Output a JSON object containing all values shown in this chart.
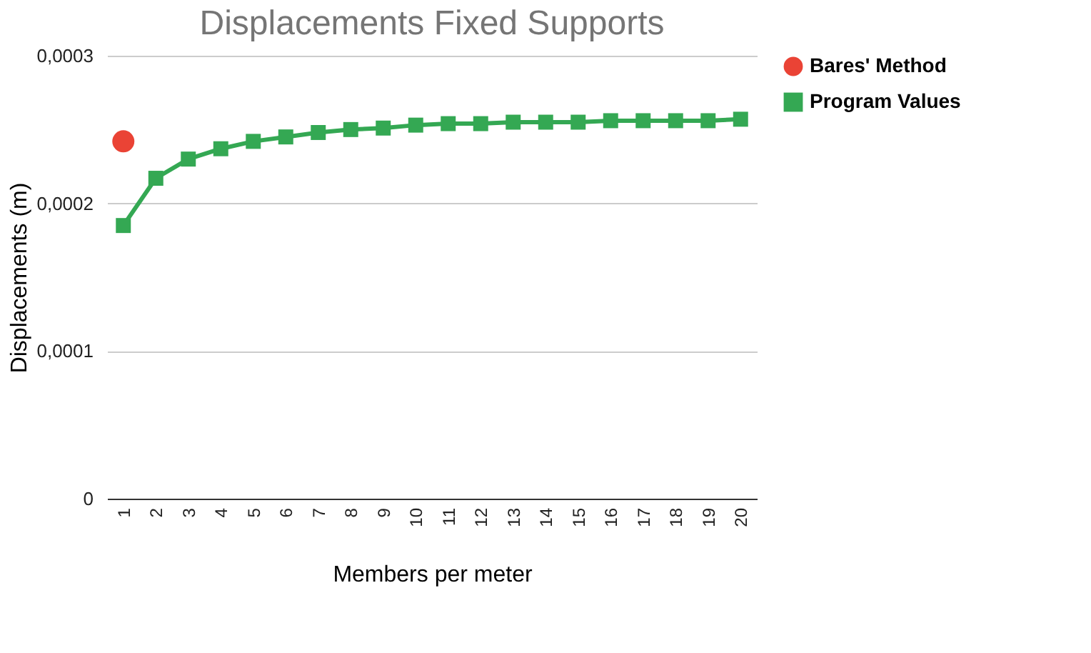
{
  "chart_data": {
    "type": "line",
    "title": "Displacements Fixed Supports",
    "xlabel": "Members per meter",
    "ylabel": "Displacements (m)",
    "categories": [
      "1",
      "2",
      "3",
      "4",
      "5",
      "6",
      "7",
      "8",
      "9",
      "10",
      "11",
      "12",
      "13",
      "14",
      "15",
      "16",
      "17",
      "18",
      "19",
      "20"
    ],
    "series": [
      {
        "name": "Bares' Method",
        "type": "scatter",
        "marker": "circle",
        "color": "#ea4335",
        "values": [
          0.000242,
          null,
          null,
          null,
          null,
          null,
          null,
          null,
          null,
          null,
          null,
          null,
          null,
          null,
          null,
          null,
          null,
          null,
          null,
          null
        ]
      },
      {
        "name": "Program Values",
        "marker": "square",
        "color": "#34a853",
        "values": [
          0.000185,
          0.000217,
          0.00023,
          0.000237,
          0.000242,
          0.000245,
          0.000248,
          0.00025,
          0.000251,
          0.000253,
          0.000254,
          0.000254,
          0.000255,
          0.000255,
          0.000255,
          0.000256,
          0.000256,
          0.000256,
          0.000256,
          0.000257
        ]
      }
    ],
    "ylim": [
      0,
      0.0003
    ],
    "yticks": [
      0,
      {
        "value": 0.0001,
        "label": "0,0001"
      },
      {
        "value": 0.0002,
        "label": "0,0002"
      },
      {
        "value": 0.0003,
        "label": "0,0003"
      }
    ],
    "grid": "y",
    "legend": "top right",
    "line_style": "solid"
  }
}
